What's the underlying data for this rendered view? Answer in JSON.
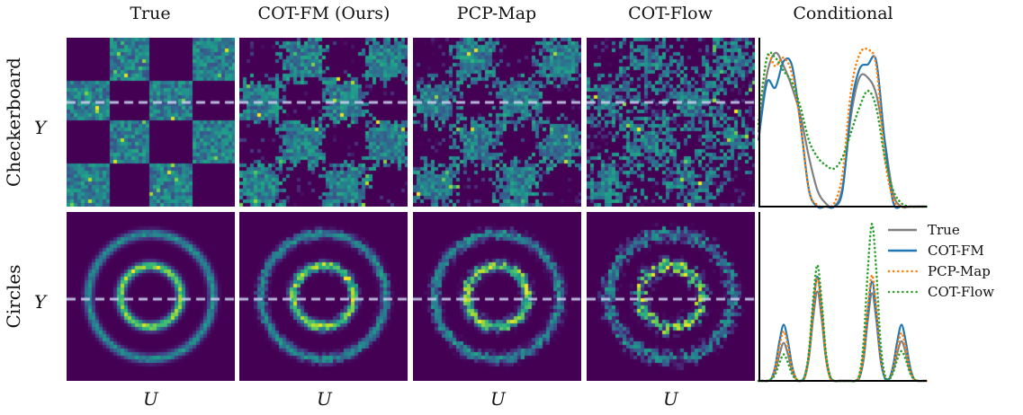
{
  "columns": [
    "True",
    "COT-FM (Ours)",
    "PCP-Map",
    "COT-Flow",
    "Conditional"
  ],
  "rows": [
    "Checkerboard",
    "Circles"
  ],
  "y_axis_label": "Y",
  "x_axis_label": "U",
  "colormap": "viridis",
  "heatmaps": [
    {
      "row": "Checkerboard",
      "method": "True",
      "pattern": "checkerboard"
    },
    {
      "row": "Checkerboard",
      "method": "COT-FM (Ours)",
      "pattern": "checkerboard"
    },
    {
      "row": "Checkerboard",
      "method": "PCP-Map",
      "pattern": "checkerboard"
    },
    {
      "row": "Checkerboard",
      "method": "COT-Flow",
      "pattern": "checkerboard"
    },
    {
      "row": "Circles",
      "method": "True",
      "pattern": "circles"
    },
    {
      "row": "Circles",
      "method": "COT-FM (Ours)",
      "pattern": "circles"
    },
    {
      "row": "Circles",
      "method": "PCP-Map",
      "pattern": "circles"
    },
    {
      "row": "Circles",
      "method": "COT-Flow",
      "pattern": "circles"
    }
  ],
  "legend": [
    {
      "label": "True",
      "color": "#808080",
      "style": "solid"
    },
    {
      "label": "COT-FM",
      "color": "#1f77b4",
      "style": "solid"
    },
    {
      "label": "PCP-Map",
      "color": "#ff7f0e",
      "style": "dotted"
    },
    {
      "label": "COT-Flow",
      "color": "#2ca02c",
      "style": "dotted"
    }
  ],
  "chart_data": [
    {
      "type": "line",
      "title": "Conditional",
      "row": "Checkerboard",
      "x": [
        0,
        0.05,
        0.1,
        0.15,
        0.2,
        0.25,
        0.3,
        0.35,
        0.4,
        0.45,
        0.5,
        0.55,
        0.6,
        0.65,
        0.7,
        0.75,
        0.8,
        0.85,
        0.9,
        0.95,
        1.0
      ],
      "series": [
        {
          "name": "True",
          "values": [
            0.45,
            0.8,
            0.93,
            0.85,
            0.72,
            0.55,
            0.3,
            0.1,
            0.02,
            0.0,
            0.12,
            0.55,
            0.78,
            0.78,
            0.68,
            0.4,
            0.08,
            0.0,
            0,
            0,
            0
          ]
        },
        {
          "name": "COT-FM",
          "values": [
            0.4,
            0.75,
            0.72,
            0.88,
            0.85,
            0.5,
            0.1,
            0.0,
            0.0,
            0.0,
            0.1,
            0.6,
            0.83,
            0.86,
            0.88,
            0.4,
            0.03,
            0,
            0,
            0,
            0
          ]
        },
        {
          "name": "PCP-Map",
          "values": [
            0.5,
            0.9,
            0.85,
            0.9,
            0.8,
            0.5,
            0.1,
            0.01,
            0,
            0.02,
            0.2,
            0.7,
            0.92,
            0.95,
            0.85,
            0.3,
            0.05,
            0,
            0,
            0,
            0
          ]
        },
        {
          "name": "COT-Flow",
          "values": [
            0.5,
            0.9,
            0.9,
            0.82,
            0.75,
            0.6,
            0.4,
            0.3,
            0.25,
            0.23,
            0.3,
            0.45,
            0.6,
            0.7,
            0.6,
            0.3,
            0.1,
            0.02,
            0,
            0,
            0
          ]
        }
      ],
      "ylim": [
        0,
        1
      ],
      "grid": false
    },
    {
      "type": "line",
      "row": "Circles",
      "x": [
        0,
        0.025,
        0.05,
        0.075,
        0.1,
        0.125,
        0.15,
        0.175,
        0.2,
        0.225,
        0.25,
        0.275,
        0.3,
        0.325,
        0.35,
        0.375,
        0.4,
        0.425,
        0.45,
        0.475,
        0.5,
        0.525,
        0.55,
        0.575,
        0.6,
        0.625,
        0.65,
        0.675,
        0.7,
        0.725,
        0.75,
        0.775,
        0.8,
        0.825,
        0.85,
        0.875,
        0.9,
        0.925,
        0.95,
        0.975,
        1.0
      ],
      "series": [
        {
          "name": "True",
          "values": [
            0,
            0,
            0,
            0.01,
            0.06,
            0.16,
            0.23,
            0.16,
            0.06,
            0.01,
            0,
            0.02,
            0.14,
            0.38,
            0.54,
            0.38,
            0.14,
            0.02,
            0,
            0,
            0,
            0,
            0,
            0,
            0.02,
            0.13,
            0.37,
            0.53,
            0.37,
            0.13,
            0.02,
            0.01,
            0.06,
            0.17,
            0.24,
            0.17,
            0.06,
            0.01,
            0,
            0,
            0
          ]
        },
        {
          "name": "COT-FM",
          "values": [
            0,
            0,
            0,
            0.01,
            0.09,
            0.24,
            0.34,
            0.24,
            0.09,
            0.01,
            0,
            0.03,
            0.16,
            0.44,
            0.63,
            0.44,
            0.16,
            0.03,
            0,
            0,
            0,
            0,
            0,
            0,
            0.02,
            0.15,
            0.42,
            0.6,
            0.42,
            0.15,
            0.02,
            0.01,
            0.09,
            0.24,
            0.34,
            0.24,
            0.09,
            0.01,
            0,
            0,
            0
          ]
        },
        {
          "name": "PCP-Map",
          "values": [
            0,
            0,
            0,
            0.01,
            0.08,
            0.21,
            0.3,
            0.21,
            0.08,
            0.01,
            0,
            0.02,
            0.16,
            0.43,
            0.62,
            0.43,
            0.16,
            0.02,
            0,
            0,
            0,
            0,
            0,
            0,
            0.03,
            0.16,
            0.45,
            0.64,
            0.45,
            0.16,
            0.03,
            0.01,
            0.07,
            0.2,
            0.29,
            0.2,
            0.07,
            0.01,
            0,
            0,
            0
          ]
        },
        {
          "name": "COT-Flow",
          "values": [
            0,
            0,
            0,
            0.01,
            0.04,
            0.11,
            0.16,
            0.11,
            0.04,
            0.01,
            0,
            0.03,
            0.18,
            0.49,
            0.7,
            0.49,
            0.18,
            0.03,
            0,
            0,
            0,
            0,
            0,
            0,
            0.04,
            0.24,
            0.67,
            0.95,
            0.67,
            0.24,
            0.04,
            0.01,
            0.05,
            0.13,
            0.18,
            0.13,
            0.05,
            0.01,
            0,
            0,
            0
          ]
        }
      ],
      "ylim": [
        0,
        1
      ],
      "grid": false,
      "legend_position": "right"
    }
  ]
}
